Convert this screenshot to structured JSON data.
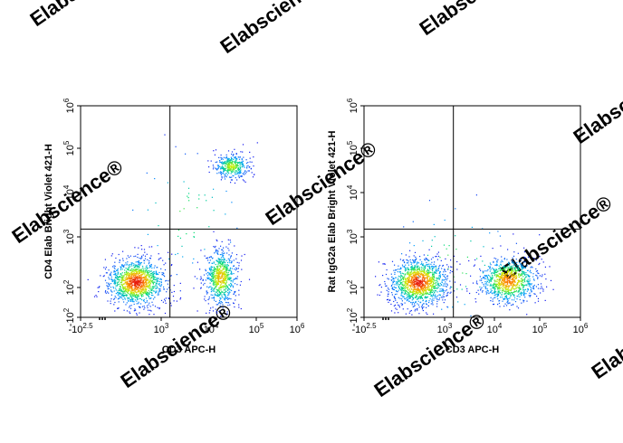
{
  "watermark": "Elabscience®",
  "chart_data": [
    {
      "type": "scatter",
      "style": "density dot plot (blue-low to red-high)",
      "xlabel": "CD3 APC-H",
      "ylabel": "CD4 Elab Bright Violet 421-H",
      "x_scale": "biexponential",
      "y_scale": "biexponential",
      "xlim": [
        -316,
        1000000
      ],
      "ylim": [
        -100,
        1000000
      ],
      "x_ticks": [
        {
          "value": -316,
          "base": "-10",
          "exp": "2.5"
        },
        {
          "value": 1000,
          "base": "10",
          "exp": "3"
        },
        {
          "value": 10000,
          "base": "10",
          "exp": "4"
        },
        {
          "value": 100000,
          "base": "10",
          "exp": "5"
        },
        {
          "value": 1000000,
          "base": "10",
          "exp": "6"
        }
      ],
      "y_ticks": [
        {
          "value": -100,
          "base": "-10",
          "exp": "2"
        },
        {
          "value": 100,
          "base": "10",
          "exp": "2"
        },
        {
          "value": 1000,
          "base": "10",
          "exp": "3"
        },
        {
          "value": 10000,
          "base": "10",
          "exp": "4"
        },
        {
          "value": 100000,
          "base": "10",
          "exp": "5"
        },
        {
          "value": 1000000,
          "base": "10",
          "exp": "6"
        }
      ],
      "quadrant_gate": {
        "x": 1500,
        "y": 1500
      },
      "populations": [
        {
          "x_center": 300,
          "y_center": 130,
          "relative_density": 1.0,
          "spread": "wide"
        },
        {
          "x_center": 16000,
          "y_center": 160,
          "relative_density": 0.55,
          "spread": "tall"
        },
        {
          "x_center": 28000,
          "y_center": 40000,
          "relative_density": 0.3,
          "spread": "tight"
        },
        {
          "x_center": 3000,
          "y_center": 3000,
          "relative_density": 0.05,
          "spread": "diffuse"
        }
      ]
    },
    {
      "type": "scatter",
      "style": "density dot plot (blue-low to red-high)",
      "xlabel": "CD3 APC-H",
      "ylabel": "Rat IgG2a Elab Bright Violet 421-H",
      "x_scale": "biexponential",
      "y_scale": "biexponential",
      "xlim": [
        -316,
        1000000
      ],
      "ylim": [
        -100,
        1000000
      ],
      "x_ticks": [
        {
          "value": -316,
          "base": "-10",
          "exp": "2.5"
        },
        {
          "value": 1000,
          "base": "10",
          "exp": "3"
        },
        {
          "value": 10000,
          "base": "10",
          "exp": "4"
        },
        {
          "value": 100000,
          "base": "10",
          "exp": "5"
        },
        {
          "value": 1000000,
          "base": "10",
          "exp": "6"
        }
      ],
      "y_ticks": [
        {
          "value": -100,
          "base": "-10",
          "exp": "2"
        },
        {
          "value": 100,
          "base": "10",
          "exp": "2"
        },
        {
          "value": 1000,
          "base": "10",
          "exp": "3"
        },
        {
          "value": 10000,
          "base": "10",
          "exp": "4"
        },
        {
          "value": 100000,
          "base": "10",
          "exp": "5"
        },
        {
          "value": 1000000,
          "base": "10",
          "exp": "6"
        }
      ],
      "quadrant_gate": {
        "x": 1500,
        "y": 1500
      },
      "populations": [
        {
          "x_center": 280,
          "y_center": 130,
          "relative_density": 1.0,
          "spread": "wide"
        },
        {
          "x_center": 20000,
          "y_center": 140,
          "relative_density": 0.75,
          "spread": "wide"
        },
        {
          "x_center": 1500,
          "y_center": 300,
          "relative_density": 0.06,
          "spread": "diffuse"
        }
      ]
    }
  ]
}
